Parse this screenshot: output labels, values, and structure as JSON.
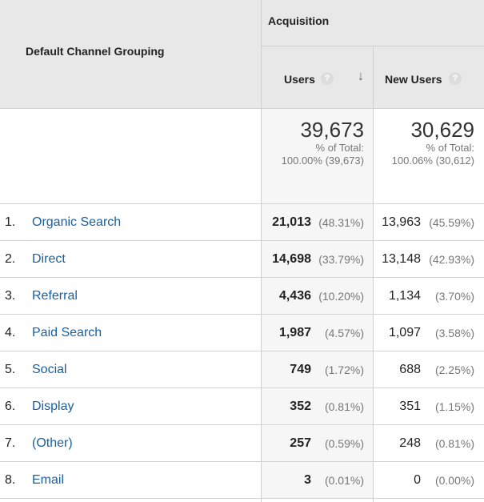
{
  "header": {
    "group_label": "Acquisition",
    "dimension_label": "Default Channel Grouping",
    "users_label": "Users",
    "new_users_label": "New Users",
    "help_glyph": "?",
    "sort_glyph": "↓",
    "help_icon": "question-icon",
    "sort_icon": "arrow-down-icon"
  },
  "totals": {
    "users": {
      "value": "39,673",
      "label": "% of Total:",
      "detail": "100.00% (39,673)"
    },
    "new_users": {
      "value": "30,629",
      "label": "% of Total:",
      "detail": "100.06% (30,612)"
    }
  },
  "rows": [
    {
      "rank": "1.",
      "channel": "Organic Search",
      "users": "21,013",
      "users_pct": "(48.31%)",
      "new_users": "13,963",
      "new_users_pct": "(45.59%)"
    },
    {
      "rank": "2.",
      "channel": "Direct",
      "users": "14,698",
      "users_pct": "(33.79%)",
      "new_users": "13,148",
      "new_users_pct": "(42.93%)"
    },
    {
      "rank": "3.",
      "channel": "Referral",
      "users": "4,436",
      "users_pct": "(10.20%)",
      "new_users": "1,134",
      "new_users_pct": "(3.70%)"
    },
    {
      "rank": "4.",
      "channel": "Paid Search",
      "users": "1,987",
      "users_pct": "(4.57%)",
      "new_users": "1,097",
      "new_users_pct": "(3.58%)"
    },
    {
      "rank": "5.",
      "channel": "Social",
      "users": "749",
      "users_pct": "(1.72%)",
      "new_users": "688",
      "new_users_pct": "(2.25%)"
    },
    {
      "rank": "6.",
      "channel": "Display",
      "users": "352",
      "users_pct": "(0.81%)",
      "new_users": "351",
      "new_users_pct": "(1.15%)"
    },
    {
      "rank": "7.",
      "channel": "(Other)",
      "users": "257",
      "users_pct": "(0.59%)",
      "new_users": "248",
      "new_users_pct": "(0.81%)"
    },
    {
      "rank": "8.",
      "channel": "Email",
      "users": "3",
      "users_pct": "(0.01%)",
      "new_users": "0",
      "new_users_pct": "(0.00%)"
    }
  ]
}
